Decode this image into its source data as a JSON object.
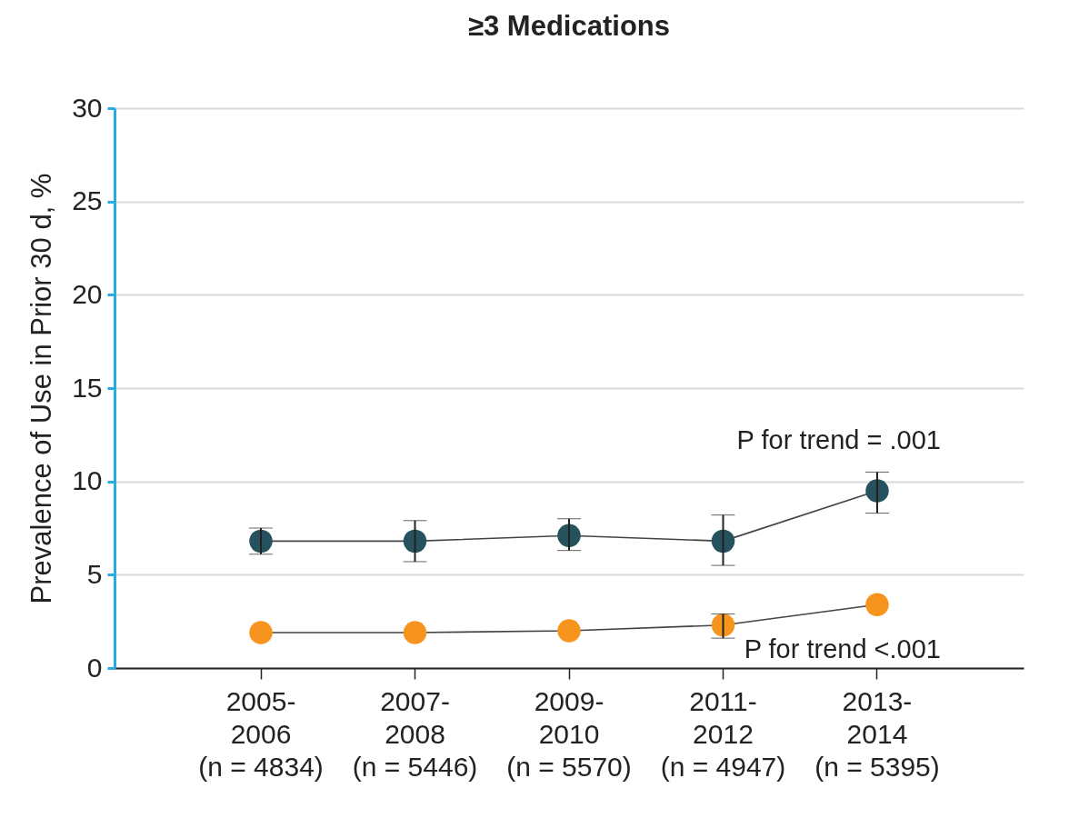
{
  "chart_data": {
    "type": "line",
    "title": "≥3 Medications",
    "ylabel": "Prevalence of Use in Prior 30 d, %",
    "categories": [
      "2005-\n2006\n(n = 4834)",
      "2007-\n2008\n(n = 5446)",
      "2009-\n2010\n(n = 5570)",
      "2011-\n2012\n(n = 4947)",
      "2013-\n2014\n(n = 5395)"
    ],
    "series": [
      {
        "color": "#26525e",
        "values": [
          6.8,
          6.8,
          7.1,
          6.8,
          9.5
        ],
        "errors": [
          [
            6.1,
            7.5
          ],
          [
            5.7,
            7.9
          ],
          [
            6.3,
            8.0
          ],
          [
            5.5,
            8.2
          ],
          [
            8.3,
            10.5
          ]
        ]
      },
      {
        "color": "#f7941d",
        "values": [
          1.9,
          1.9,
          2.0,
          2.3,
          3.4
        ],
        "errors": [
          null,
          null,
          null,
          [
            1.6,
            2.9
          ],
          null
        ]
      }
    ],
    "ylim": [
      0,
      30
    ],
    "yticks": [
      0,
      5,
      10,
      15,
      20,
      25,
      30
    ],
    "grid": "y",
    "marker": "circle",
    "line_style": "solid",
    "annotations": [
      "P for trend = .001",
      "P for trend <.001"
    ]
  }
}
